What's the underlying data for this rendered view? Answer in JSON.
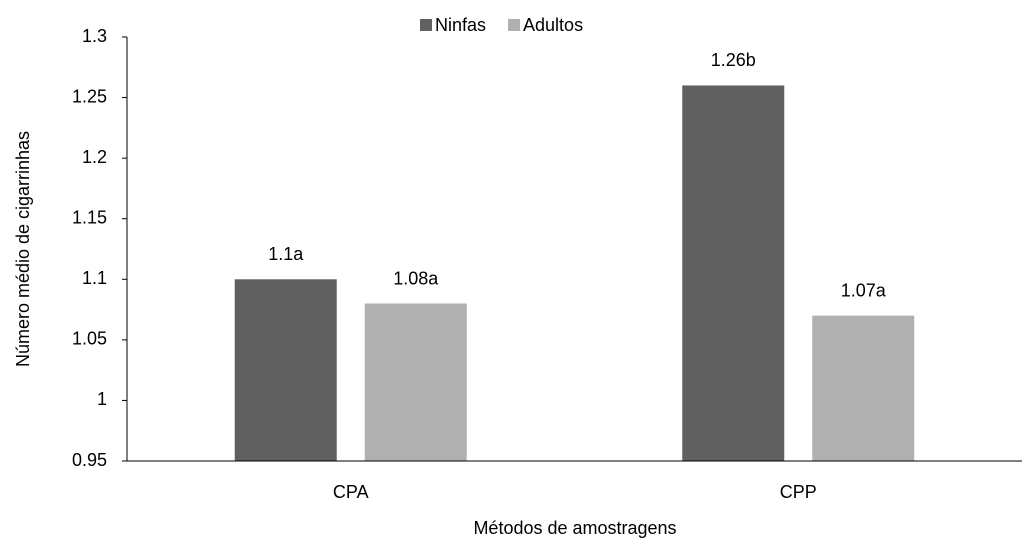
{
  "chart_data": {
    "type": "bar",
    "categories": [
      "CPA",
      "CPP"
    ],
    "series": [
      {
        "name": "Ninfas",
        "color": "#606060",
        "values": [
          1.1,
          1.26
        ],
        "value_labels": [
          "1.1a",
          "1.26b"
        ]
      },
      {
        "name": "Adultos",
        "color": "#b0b0b0",
        "values": [
          1.08,
          1.07
        ],
        "value_labels": [
          "1.08a",
          "1.07a"
        ]
      }
    ],
    "x_label": "Métodos de amostragens",
    "y_label": "Número médio de  cigarrinhas",
    "ylim": [
      0.95,
      1.3
    ],
    "yticks": [
      0.95,
      1,
      1.05,
      1.1,
      1.15,
      1.2,
      1.25,
      1.3
    ],
    "grid": false,
    "legend": "top"
  }
}
